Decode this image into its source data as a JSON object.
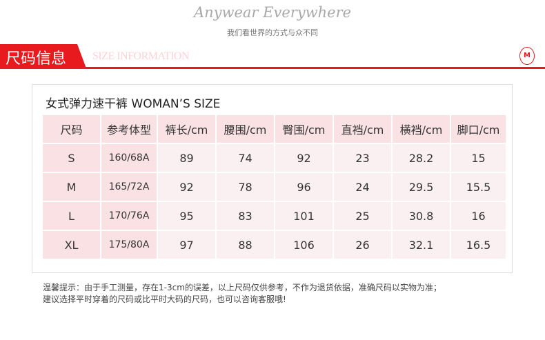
{
  "banner": {
    "slogan": "Anywear Everywhere",
    "subtitle": "我们看世界的方式与众不同"
  },
  "section": {
    "title_cn": "尺码信息",
    "title_en": "SIZE INFORMATION",
    "accent": "#e81a1d",
    "logo": "AM"
  },
  "table": {
    "title": "女式弹力速干裤 WOMAN’S SIZE",
    "headers": [
      "尺码",
      "参考体型",
      "裤长/cm",
      "腰围/cm",
      "臀围/cm",
      "直裆/cm",
      "横裆/cm",
      "脚口/cm"
    ],
    "rows": [
      [
        "S",
        "160/68A",
        "89",
        "74",
        "92",
        "23",
        "28.2",
        "15"
      ],
      [
        "M",
        "165/72A",
        "92",
        "78",
        "96",
        "24",
        "29.5",
        "15.5"
      ],
      [
        "L",
        "170/76A",
        "95",
        "83",
        "101",
        "25",
        "30.8",
        "16"
      ],
      [
        "XL",
        "175/80A",
        "97",
        "88",
        "106",
        "26",
        "32.1",
        "16.5"
      ]
    ]
  },
  "note": {
    "line1": "温馨提示：由于手工测量，存在1-3cm的误差，以上尺码仅供参考，不作为退货依据，准确尺码以实物为准；",
    "line2": "建议选择平时穿着的尺码或比平时大码的尺码，也可以咨询客服哦!"
  }
}
